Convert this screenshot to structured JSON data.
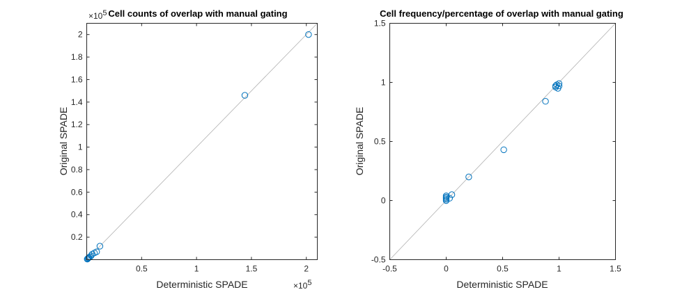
{
  "colors": {
    "marker": "#0072BD",
    "refline": "#b0b0b0",
    "axis": "#262626"
  },
  "chart_data": [
    {
      "type": "scatter",
      "title": "Cell counts of overlap with manual gating",
      "xlabel": "Deterministic SPADE",
      "ylabel": "Original SPADE",
      "xlim": [
        0,
        2.1
      ],
      "ylim": [
        0,
        2.1
      ],
      "x_multiplier": "×10",
      "x_exponent": "5",
      "y_multiplier": "×10",
      "y_exponent": "5",
      "x_ticks": [
        0.5,
        1,
        1.5,
        2
      ],
      "x_tick_labels": [
        "0.5",
        "1",
        "1.5",
        "2"
      ],
      "y_ticks": [
        0.2,
        0.4,
        0.6,
        0.8,
        1,
        1.2,
        1.4,
        1.6,
        1.8,
        2
      ],
      "y_tick_labels": [
        "0.2",
        "0.4",
        "0.6",
        "0.8",
        "1",
        "1.2",
        "1.4",
        "1.6",
        "1.8",
        "2"
      ],
      "identity_line": true,
      "grid": false,
      "x": [
        0.005,
        0.01,
        0.015,
        0.02,
        0.03,
        0.04,
        0.05,
        0.07,
        0.09,
        0.12,
        1.44,
        2.02
      ],
      "y": [
        0.005,
        0.01,
        0.015,
        0.02,
        0.025,
        0.035,
        0.05,
        0.06,
        0.07,
        0.12,
        1.46,
        2.0
      ]
    },
    {
      "type": "scatter",
      "title": "Cell frequency/percentage of overlap with manual gating",
      "xlabel": "Deterministic SPADE",
      "ylabel": "Original SPADE",
      "xlim": [
        -0.5,
        1.5
      ],
      "ylim": [
        -0.5,
        1.5
      ],
      "x_ticks": [
        -0.5,
        0,
        0.5,
        1,
        1.5
      ],
      "x_tick_labels": [
        "-0.5",
        "0",
        "0.5",
        "1",
        "1.5"
      ],
      "y_ticks": [
        -0.5,
        0,
        0.5,
        1,
        1.5
      ],
      "y_tick_labels": [
        "-0.5",
        "0",
        "0.5",
        "1",
        "1.5"
      ],
      "identity_line": true,
      "grid": false,
      "x": [
        0.0,
        0.0,
        0.0,
        0.0,
        0.0,
        0.03,
        0.05,
        0.2,
        0.51,
        0.88,
        0.97,
        0.97,
        0.98,
        0.99,
        1.0,
        1.0
      ],
      "y": [
        0.0,
        0.01,
        0.02,
        0.03,
        0.04,
        0.02,
        0.05,
        0.2,
        0.43,
        0.84,
        0.96,
        0.97,
        0.98,
        0.95,
        0.99,
        0.97
      ]
    }
  ]
}
